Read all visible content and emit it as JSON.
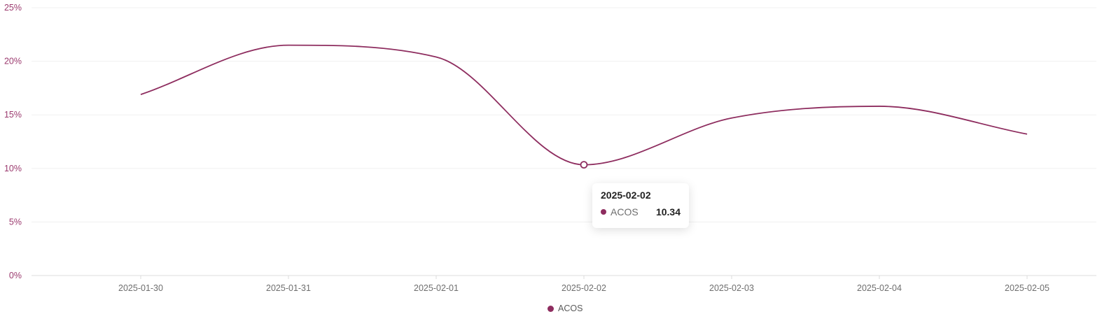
{
  "chart_data": {
    "type": "line",
    "smooth": true,
    "categories": [
      "2025-01-30",
      "2025-01-31",
      "2025-02-01",
      "2025-02-02",
      "2025-02-03",
      "2025-02-04",
      "2025-02-05"
    ],
    "series": [
      {
        "name": "ACOS",
        "values": [
          16.9,
          21.5,
          20.4,
          10.34,
          14.7,
          15.8,
          13.2
        ],
        "color": "#8e2d5f"
      }
    ],
    "ylim": [
      0,
      25
    ],
    "yticks": [
      0,
      5,
      10,
      15,
      20,
      25
    ],
    "ytick_labels": [
      "0%",
      "5%",
      "10%",
      "15%",
      "20%",
      "25%"
    ],
    "grid": true,
    "legend": "bottom-center",
    "title": "",
    "xlabel": "",
    "ylabel": ""
  },
  "tooltip": {
    "title": "2025-02-02",
    "series_name": "ACOS",
    "value": "10.34",
    "category_index": 3
  },
  "legend": {
    "label": "ACOS"
  },
  "colors": {
    "series": "#8e2d5f",
    "axis_label": "#9b3a6e"
  }
}
